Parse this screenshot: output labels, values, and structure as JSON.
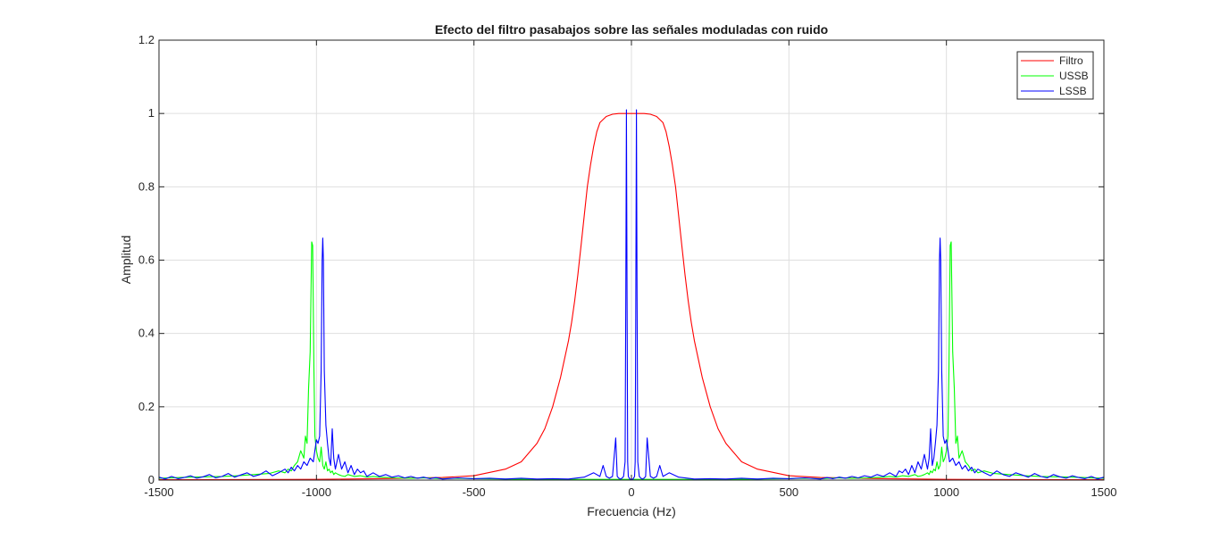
{
  "chart_data": {
    "type": "line",
    "title": "Efecto del filtro pasabajos sobre las señales moduladas con ruido",
    "xlabel": "Frecuencia (Hz)",
    "ylabel": "Amplitud",
    "xlim": [
      -1500,
      1500
    ],
    "ylim": [
      0,
      1.2
    ],
    "xticks": [
      -1500,
      -1000,
      -500,
      0,
      500,
      1000,
      1500
    ],
    "xtick_labels": [
      "-1500",
      "-1000",
      "-500",
      "0",
      "500",
      "1000",
      "1500"
    ],
    "yticks": [
      0,
      0.2,
      0.4,
      0.6,
      0.8,
      1,
      1.2
    ],
    "ytick_labels": [
      "0",
      "0.2",
      "0.4",
      "0.6",
      "0.8",
      "1",
      "1.2"
    ],
    "grid": true,
    "legend_position": "top-right",
    "series": [
      {
        "name": "Filtro",
        "color": "#ff0000",
        "x": [
          -1500,
          -1000,
          -800,
          -600,
          -500,
          -400,
          -350,
          -300,
          -275,
          -250,
          -225,
          -200,
          -190,
          -180,
          -170,
          -160,
          -150,
          -140,
          -130,
          -120,
          -110,
          -100,
          -80,
          -60,
          -40,
          -20,
          0,
          20,
          40,
          60,
          80,
          100,
          110,
          120,
          130,
          140,
          150,
          160,
          170,
          180,
          190,
          200,
          225,
          250,
          275,
          300,
          350,
          400,
          500,
          600,
          800,
          1000,
          1500
        ],
        "y": [
          0.001,
          0.002,
          0.004,
          0.007,
          0.012,
          0.03,
          0.05,
          0.1,
          0.14,
          0.2,
          0.28,
          0.38,
          0.43,
          0.49,
          0.56,
          0.64,
          0.72,
          0.8,
          0.86,
          0.91,
          0.95,
          0.975,
          0.992,
          0.998,
          1,
          1,
          1,
          1,
          1,
          0.998,
          0.992,
          0.975,
          0.95,
          0.91,
          0.86,
          0.8,
          0.72,
          0.64,
          0.56,
          0.49,
          0.43,
          0.38,
          0.28,
          0.2,
          0.14,
          0.1,
          0.05,
          0.03,
          0.012,
          0.007,
          0.004,
          0.002,
          0.001
        ]
      },
      {
        "name": "USSB",
        "color": "#00ff00",
        "x": [
          -1500,
          -1400,
          -1300,
          -1250,
          -1200,
          -1150,
          -1120,
          -1100,
          -1090,
          -1080,
          -1070,
          -1060,
          -1050,
          -1040,
          -1035,
          -1030,
          -1025,
          -1020,
          -1015,
          -1012,
          -1008,
          -1005,
          -1000,
          -995,
          -990,
          -985,
          -980,
          -975,
          -970,
          -965,
          -960,
          -955,
          -950,
          -945,
          -940,
          -930,
          -920,
          -910,
          -900,
          -880,
          -860,
          -840,
          -820,
          -800,
          -750,
          -700,
          -650,
          -600,
          -550,
          -500,
          -400,
          -300,
          -200,
          -100,
          -50,
          0,
          50,
          100,
          200,
          300,
          400,
          500,
          550,
          600,
          650,
          700,
          750,
          800,
          820,
          840,
          860,
          880,
          900,
          910,
          920,
          930,
          940,
          945,
          950,
          955,
          960,
          965,
          970,
          975,
          980,
          985,
          990,
          995,
          1000,
          1005,
          1008,
          1012,
          1015,
          1020,
          1025,
          1030,
          1035,
          1040,
          1050,
          1060,
          1070,
          1080,
          1090,
          1100,
          1120,
          1150,
          1200,
          1250,
          1300,
          1400,
          1500
        ],
        "y": [
          0.005,
          0.008,
          0.01,
          0.012,
          0.015,
          0.018,
          0.025,
          0.02,
          0.03,
          0.025,
          0.04,
          0.05,
          0.08,
          0.06,
          0.12,
          0.1,
          0.25,
          0.35,
          0.65,
          0.64,
          0.3,
          0.12,
          0.08,
          0.06,
          0.05,
          0.09,
          0.04,
          0.03,
          0.05,
          0.025,
          0.03,
          0.02,
          0.025,
          0.015,
          0.02,
          0.015,
          0.012,
          0.01,
          0.015,
          0.01,
          0.012,
          0.008,
          0.01,
          0.008,
          0.006,
          0.005,
          0.006,
          0.004,
          0.005,
          0.004,
          0.003,
          0.002,
          0.002,
          0.002,
          0.002,
          0.002,
          0.002,
          0.002,
          0.002,
          0.002,
          0.003,
          0.004,
          0.005,
          0.004,
          0.006,
          0.005,
          0.006,
          0.008,
          0.01,
          0.008,
          0.012,
          0.01,
          0.015,
          0.01,
          0.012,
          0.015,
          0.02,
          0.015,
          0.025,
          0.02,
          0.03,
          0.025,
          0.05,
          0.03,
          0.04,
          0.09,
          0.05,
          0.06,
          0.08,
          0.12,
          0.3,
          0.64,
          0.65,
          0.35,
          0.25,
          0.1,
          0.12,
          0.06,
          0.08,
          0.05,
          0.04,
          0.025,
          0.03,
          0.02,
          0.025,
          0.018,
          0.015,
          0.012,
          0.01,
          0.008,
          0.005
        ]
      },
      {
        "name": "LSSB",
        "color": "#0000ff",
        "x": [
          -1500,
          -1480,
          -1460,
          -1440,
          -1420,
          -1400,
          -1380,
          -1360,
          -1340,
          -1320,
          -1300,
          -1280,
          -1260,
          -1240,
          -1220,
          -1200,
          -1180,
          -1160,
          -1140,
          -1120,
          -1100,
          -1090,
          -1080,
          -1070,
          -1060,
          -1050,
          -1040,
          -1030,
          -1020,
          -1010,
          -1000,
          -995,
          -990,
          -985,
          -982,
          -980,
          -978,
          -975,
          -970,
          -965,
          -960,
          -955,
          -950,
          -945,
          -940,
          -930,
          -920,
          -910,
          -900,
          -890,
          -880,
          -870,
          -860,
          -850,
          -840,
          -820,
          -800,
          -780,
          -760,
          -740,
          -720,
          -700,
          -680,
          -660,
          -640,
          -620,
          -600,
          -550,
          -500,
          -450,
          -400,
          -350,
          -300,
          -250,
          -200,
          -150,
          -120,
          -100,
          -90,
          -80,
          -70,
          -60,
          -50,
          -45,
          -40,
          -35,
          -30,
          -25,
          -20,
          -18,
          -16,
          -14,
          -12,
          -10,
          -5,
          0,
          5,
          10,
          12,
          14,
          16,
          18,
          20,
          25,
          30,
          35,
          40,
          45,
          50,
          60,
          70,
          80,
          90,
          100,
          120,
          150,
          200,
          250,
          300,
          350,
          400,
          450,
          500,
          550,
          600,
          620,
          640,
          660,
          680,
          700,
          720,
          740,
          760,
          780,
          800,
          820,
          840,
          850,
          860,
          870,
          880,
          890,
          900,
          910,
          920,
          930,
          940,
          945,
          950,
          955,
          960,
          965,
          970,
          975,
          978,
          980,
          982,
          985,
          990,
          995,
          1000,
          1010,
          1020,
          1030,
          1040,
          1050,
          1060,
          1070,
          1080,
          1090,
          1100,
          1120,
          1140,
          1160,
          1180,
          1200,
          1220,
          1240,
          1260,
          1280,
          1300,
          1320,
          1340,
          1360,
          1380,
          1400,
          1420,
          1440,
          1460,
          1480,
          1500
        ],
        "y": [
          0.008,
          0.003,
          0.01,
          0.004,
          0.007,
          0.012,
          0.005,
          0.009,
          0.015,
          0.006,
          0.01,
          0.018,
          0.008,
          0.014,
          0.02,
          0.01,
          0.015,
          0.025,
          0.012,
          0.02,
          0.03,
          0.02,
          0.035,
          0.025,
          0.04,
          0.03,
          0.05,
          0.04,
          0.06,
          0.05,
          0.11,
          0.1,
          0.12,
          0.3,
          0.6,
          0.66,
          0.6,
          0.3,
          0.15,
          0.1,
          0.06,
          0.04,
          0.14,
          0.06,
          0.03,
          0.07,
          0.03,
          0.05,
          0.02,
          0.04,
          0.015,
          0.03,
          0.02,
          0.025,
          0.01,
          0.02,
          0.01,
          0.015,
          0.008,
          0.012,
          0.006,
          0.01,
          0.005,
          0.008,
          0.004,
          0.007,
          0.003,
          0.006,
          0.004,
          0.005,
          0.003,
          0.005,
          0.003,
          0.004,
          0.003,
          0.008,
          0.02,
          0.01,
          0.04,
          0.01,
          0.005,
          0.01,
          0.115,
          0.01,
          0.005,
          0.003,
          0.005,
          0.01,
          0.05,
          0.5,
          1.01,
          0.5,
          0.05,
          0.01,
          0.003,
          0.002,
          0.003,
          0.01,
          0.05,
          0.5,
          1.01,
          0.5,
          0.05,
          0.01,
          0.005,
          0.003,
          0.005,
          0.01,
          0.115,
          0.01,
          0.005,
          0.01,
          0.04,
          0.01,
          0.02,
          0.008,
          0.003,
          0.004,
          0.003,
          0.005,
          0.003,
          0.005,
          0.004,
          0.006,
          0.003,
          0.007,
          0.004,
          0.008,
          0.005,
          0.01,
          0.006,
          0.012,
          0.008,
          0.015,
          0.01,
          0.02,
          0.01,
          0.025,
          0.02,
          0.03,
          0.015,
          0.04,
          0.02,
          0.05,
          0.03,
          0.07,
          0.03,
          0.06,
          0.14,
          0.04,
          0.06,
          0.1,
          0.15,
          0.3,
          0.6,
          0.66,
          0.6,
          0.3,
          0.12,
          0.1,
          0.11,
          0.05,
          0.06,
          0.04,
          0.05,
          0.03,
          0.04,
          0.025,
          0.035,
          0.02,
          0.03,
          0.02,
          0.012,
          0.025,
          0.015,
          0.01,
          0.02,
          0.014,
          0.008,
          0.018,
          0.01,
          0.006,
          0.015,
          0.009,
          0.005,
          0.012,
          0.007,
          0.004,
          0.01,
          0.003,
          0.008
        ]
      }
    ]
  }
}
